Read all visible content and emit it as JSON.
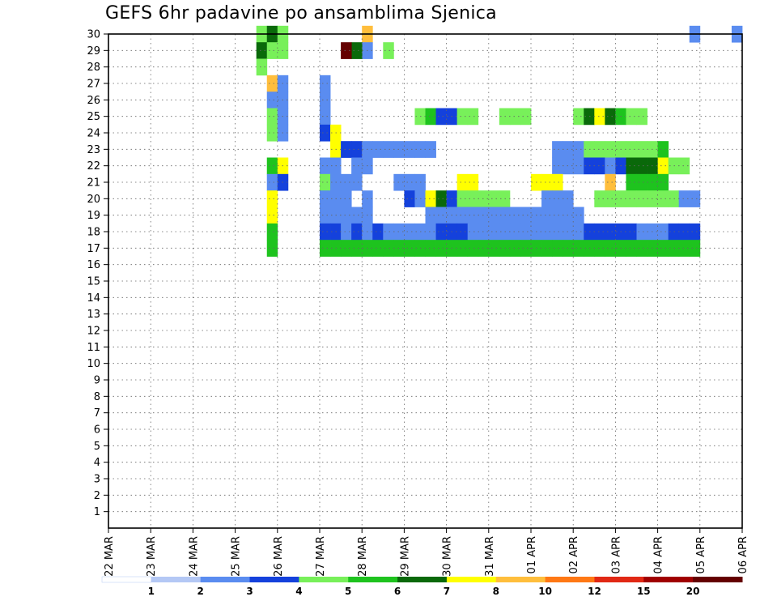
{
  "chart_data": {
    "type": "heatmap",
    "title": "GEFS 6hr padavine po ansamblima Sjenica",
    "xlabel": "",
    "ylabel": "",
    "x_tick_labels": [
      "22 MAR",
      "23 MAR",
      "24 MAR",
      "25 MAR",
      "26 MAR",
      "27 MAR",
      "28 MAR",
      "29 MAR",
      "30 MAR",
      "31 MAR",
      "01 APR",
      "02 APR",
      "03 APR",
      "04 APR",
      "05 APR",
      "06 APR"
    ],
    "y_tick_labels": [
      "1",
      "2",
      "3",
      "4",
      "5",
      "6",
      "7",
      "8",
      "9",
      "10",
      "11",
      "12",
      "13",
      "14",
      "15",
      "16",
      "17",
      "18",
      "19",
      "20",
      "21",
      "22",
      "23",
      "24",
      "25",
      "26",
      "27",
      "28",
      "29",
      "30"
    ],
    "x_range_steps": [
      0,
      60
    ],
    "y_range_members": [
      0,
      30
    ],
    "grid": true,
    "legend_placement": "bottom",
    "legend": {
      "labels": [
        "1",
        "2",
        "3",
        "4",
        "5",
        "6",
        "7",
        "8",
        "10",
        "12",
        "15",
        "20"
      ],
      "colors": [
        "#b4c8f5",
        "#5a8cf0",
        "#1441dc",
        "#78f05a",
        "#1ec31e",
        "#0a690a",
        "#ffff00",
        "#ffbe3c",
        "#ff7814",
        "#e12814",
        "#a00000",
        "#640000"
      ]
    },
    "cells": [
      [
        14,
        30,
        3
      ],
      [
        15,
        30,
        5
      ],
      [
        16,
        30,
        3
      ],
      [
        24,
        30,
        7
      ],
      [
        55,
        30,
        1
      ],
      [
        59,
        30,
        1
      ],
      [
        14,
        29,
        5
      ],
      [
        15,
        29,
        3
      ],
      [
        16,
        29,
        3
      ],
      [
        26,
        29,
        3
      ],
      [
        24,
        29,
        1
      ],
      [
        23,
        29,
        5
      ],
      [
        22,
        29,
        11
      ],
      [
        14,
        28,
        3
      ],
      [
        15,
        27,
        7
      ],
      [
        16,
        27,
        1
      ],
      [
        20,
        27,
        1
      ],
      [
        15,
        26,
        1
      ],
      [
        16,
        26,
        1
      ],
      [
        20,
        26,
        1
      ],
      [
        15,
        25,
        3
      ],
      [
        16,
        25,
        1
      ],
      [
        20,
        25,
        1
      ],
      [
        29,
        25,
        3
      ],
      [
        30,
        25,
        4
      ],
      [
        31,
        25,
        2
      ],
      [
        32,
        25,
        2
      ],
      [
        33,
        25,
        3
      ],
      [
        34,
        25,
        3
      ],
      [
        37,
        25,
        3
      ],
      [
        38,
        25,
        3
      ],
      [
        39,
        25,
        3
      ],
      [
        44,
        25,
        3
      ],
      [
        45,
        25,
        5
      ],
      [
        46,
        25,
        6
      ],
      [
        47,
        25,
        5
      ],
      [
        48,
        25,
        4
      ],
      [
        49,
        25,
        3
      ],
      [
        50,
        25,
        3
      ],
      [
        15,
        24,
        3
      ],
      [
        16,
        24,
        1
      ],
      [
        20,
        24,
        2
      ],
      [
        21,
        24,
        6
      ],
      [
        21,
        23,
        6
      ],
      [
        22,
        23,
        2
      ],
      [
        23,
        23,
        2
      ],
      [
        24,
        23,
        1
      ],
      [
        25,
        23,
        1
      ],
      [
        26,
        23,
        1
      ],
      [
        27,
        23,
        1
      ],
      [
        28,
        23,
        1
      ],
      [
        29,
        23,
        1
      ],
      [
        30,
        23,
        1
      ],
      [
        42,
        23,
        1
      ],
      [
        43,
        23,
        1
      ],
      [
        44,
        23,
        1
      ],
      [
        45,
        23,
        3
      ],
      [
        46,
        23,
        3
      ],
      [
        47,
        23,
        3
      ],
      [
        48,
        23,
        3
      ],
      [
        49,
        23,
        3
      ],
      [
        50,
        23,
        3
      ],
      [
        51,
        23,
        3
      ],
      [
        52,
        23,
        4
      ],
      [
        15,
        22,
        4
      ],
      [
        16,
        22,
        6
      ],
      [
        20,
        22,
        1
      ],
      [
        21,
        22,
        1
      ],
      [
        23,
        22,
        1
      ],
      [
        24,
        22,
        1
      ],
      [
        42,
        22,
        1
      ],
      [
        43,
        22,
        1
      ],
      [
        44,
        22,
        1
      ],
      [
        45,
        22,
        2
      ],
      [
        46,
        22,
        2
      ],
      [
        47,
        22,
        1
      ],
      [
        48,
        22,
        2
      ],
      [
        49,
        22,
        5
      ],
      [
        50,
        22,
        5
      ],
      [
        51,
        22,
        5
      ],
      [
        52,
        22,
        6
      ],
      [
        53,
        22,
        3
      ],
      [
        54,
        22,
        3
      ],
      [
        15,
        21,
        1
      ],
      [
        16,
        21,
        2
      ],
      [
        20,
        21,
        3
      ],
      [
        21,
        21,
        1
      ],
      [
        22,
        21,
        1
      ],
      [
        23,
        21,
        1
      ],
      [
        27,
        21,
        1
      ],
      [
        28,
        21,
        1
      ],
      [
        29,
        21,
        1
      ],
      [
        33,
        21,
        6
      ],
      [
        34,
        21,
        6
      ],
      [
        40,
        21,
        6
      ],
      [
        41,
        21,
        6
      ],
      [
        42,
        21,
        6
      ],
      [
        47,
        21,
        7
      ],
      [
        49,
        21,
        4
      ],
      [
        50,
        21,
        4
      ],
      [
        51,
        21,
        4
      ],
      [
        52,
        21,
        4
      ],
      [
        15,
        20,
        6
      ],
      [
        20,
        20,
        1
      ],
      [
        21,
        20,
        1
      ],
      [
        22,
        20,
        1
      ],
      [
        24,
        20,
        1
      ],
      [
        28,
        20,
        2
      ],
      [
        29,
        20,
        1
      ],
      [
        30,
        20,
        6
      ],
      [
        31,
        20,
        5
      ],
      [
        32,
        20,
        2
      ],
      [
        33,
        20,
        3
      ],
      [
        34,
        20,
        3
      ],
      [
        35,
        20,
        3
      ],
      [
        36,
        20,
        3
      ],
      [
        37,
        20,
        3
      ],
      [
        41,
        20,
        1
      ],
      [
        42,
        20,
        1
      ],
      [
        43,
        20,
        1
      ],
      [
        46,
        20,
        3
      ],
      [
        47,
        20,
        3
      ],
      [
        48,
        20,
        3
      ],
      [
        49,
        20,
        3
      ],
      [
        50,
        20,
        3
      ],
      [
        51,
        20,
        3
      ],
      [
        52,
        20,
        3
      ],
      [
        53,
        20,
        3
      ],
      [
        54,
        20,
        1
      ],
      [
        55,
        20,
        1
      ],
      [
        15,
        19,
        6
      ],
      [
        20,
        19,
        1
      ],
      [
        21,
        19,
        1
      ],
      [
        22,
        19,
        1
      ],
      [
        23,
        19,
        1
      ],
      [
        24,
        19,
        1
      ],
      [
        30,
        19,
        1
      ],
      [
        31,
        19,
        1
      ],
      [
        32,
        19,
        1
      ],
      [
        33,
        19,
        1
      ],
      [
        34,
        19,
        1
      ],
      [
        35,
        19,
        1
      ],
      [
        36,
        19,
        1
      ],
      [
        37,
        19,
        1
      ],
      [
        38,
        19,
        1
      ],
      [
        39,
        19,
        1
      ],
      [
        40,
        19,
        1
      ],
      [
        41,
        19,
        1
      ],
      [
        42,
        19,
        1
      ],
      [
        43,
        19,
        1
      ],
      [
        44,
        19,
        1
      ],
      [
        15,
        18,
        4
      ],
      [
        20,
        18,
        2
      ],
      [
        21,
        18,
        2
      ],
      [
        22,
        18,
        1
      ],
      [
        23,
        18,
        2
      ],
      [
        24,
        18,
        1
      ],
      [
        25,
        18,
        2
      ],
      [
        26,
        18,
        1
      ],
      [
        27,
        18,
        1
      ],
      [
        28,
        18,
        1
      ],
      [
        29,
        18,
        1
      ],
      [
        30,
        18,
        1
      ],
      [
        31,
        18,
        2
      ],
      [
        32,
        18,
        2
      ],
      [
        33,
        18,
        2
      ],
      [
        34,
        18,
        1
      ],
      [
        35,
        18,
        1
      ],
      [
        36,
        18,
        1
      ],
      [
        37,
        18,
        1
      ],
      [
        38,
        18,
        1
      ],
      [
        39,
        18,
        1
      ],
      [
        40,
        18,
        1
      ],
      [
        41,
        18,
        1
      ],
      [
        42,
        18,
        1
      ],
      [
        43,
        18,
        1
      ],
      [
        44,
        18,
        1
      ],
      [
        45,
        18,
        2
      ],
      [
        46,
        18,
        2
      ],
      [
        47,
        18,
        2
      ],
      [
        48,
        18,
        2
      ],
      [
        49,
        18,
        2
      ],
      [
        50,
        18,
        1
      ],
      [
        51,
        18,
        1
      ],
      [
        52,
        18,
        1
      ],
      [
        53,
        18,
        2
      ],
      [
        54,
        18,
        2
      ],
      [
        55,
        18,
        2
      ],
      [
        15,
        17,
        4
      ],
      [
        20,
        17,
        4
      ],
      [
        21,
        17,
        4
      ],
      [
        22,
        17,
        4
      ],
      [
        23,
        17,
        4
      ],
      [
        24,
        17,
        4
      ],
      [
        25,
        17,
        4
      ],
      [
        26,
        17,
        4
      ],
      [
        27,
        17,
        4
      ],
      [
        28,
        17,
        4
      ],
      [
        29,
        17,
        4
      ],
      [
        30,
        17,
        4
      ],
      [
        31,
        17,
        4
      ],
      [
        32,
        17,
        4
      ],
      [
        33,
        17,
        4
      ],
      [
        34,
        17,
        4
      ],
      [
        35,
        17,
        4
      ],
      [
        36,
        17,
        4
      ],
      [
        37,
        17,
        4
      ],
      [
        38,
        17,
        4
      ],
      [
        39,
        17,
        4
      ],
      [
        40,
        17,
        4
      ],
      [
        41,
        17,
        4
      ],
      [
        42,
        17,
        4
      ],
      [
        43,
        17,
        4
      ],
      [
        44,
        17,
        4
      ],
      [
        45,
        17,
        4
      ],
      [
        46,
        17,
        4
      ],
      [
        47,
        17,
        4
      ],
      [
        48,
        17,
        4
      ],
      [
        49,
        17,
        4
      ],
      [
        50,
        17,
        4
      ],
      [
        51,
        17,
        4
      ],
      [
        52,
        17,
        4
      ],
      [
        53,
        17,
        4
      ],
      [
        54,
        17,
        4
      ],
      [
        55,
        17,
        4
      ]
    ]
  }
}
